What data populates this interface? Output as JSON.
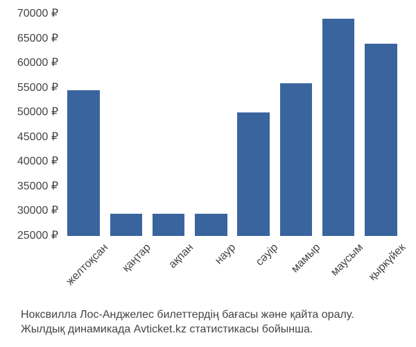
{
  "chart": {
    "type": "bar",
    "background_color": "#ffffff",
    "bar_color": "#3a649e",
    "text_color": "#444444",
    "label_fontsize": 16,
    "caption_fontsize": 16,
    "currency_symbol": "₽",
    "ylim": [
      25000,
      70000
    ],
    "ytick_step": 5000,
    "yticks": [
      25000,
      30000,
      35000,
      40000,
      45000,
      50000,
      55000,
      60000,
      65000,
      70000
    ],
    "ytick_labels": [
      "25000 ₽",
      "30000 ₽",
      "35000 ₽",
      "40000 ₽",
      "45000 ₽",
      "50000 ₽",
      "55000 ₽",
      "60000 ₽",
      "65000 ₽",
      "70000 ₽"
    ],
    "bar_width": 0.76,
    "x_label_rotation_deg": -45,
    "categories": [
      "желтоқсан",
      "қаңтар",
      "ақпан",
      "наур",
      "сәуір",
      "мамыр",
      "маусым",
      "қыркүйек"
    ],
    "values": [
      54500,
      29500,
      29500,
      29500,
      50000,
      56000,
      69000,
      64000
    ]
  },
  "caption": {
    "line1": "Ноксвилла Лос-Анджелес билеттердің бағасы және қайта оралу.",
    "line2": "Жылдық динамикада Avticket.kz статистикасы бойынша."
  }
}
